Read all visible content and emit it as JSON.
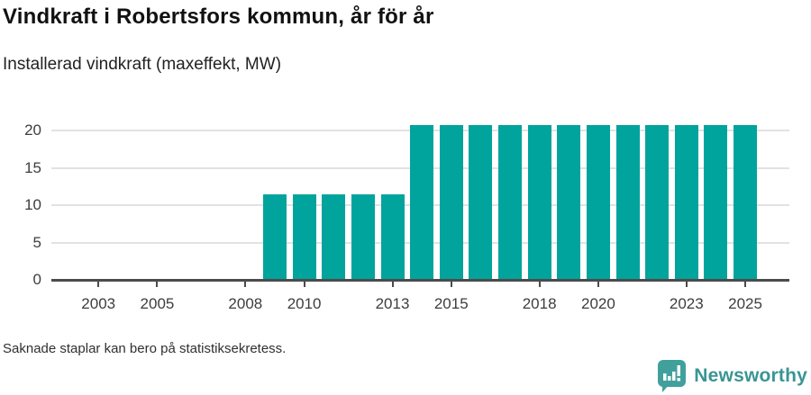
{
  "header": {
    "title": "Vindkraft i Robertsfors kommun, år för år",
    "subtitle": "Installerad vindkraft (maxeffekt, MW)"
  },
  "chart_data": {
    "type": "bar",
    "title": "Vindkraft i Robertsfors kommun, år för år",
    "subtitle": "Installerad vindkraft (maxeffekt, MW)",
    "unit": "MW",
    "categories": [
      2009,
      2010,
      2011,
      2012,
      2013,
      2014,
      2015,
      2016,
      2017,
      2018,
      2019,
      2020,
      2021,
      2022,
      2023,
      2024,
      2025
    ],
    "values": [
      11.5,
      11.5,
      11.5,
      11.5,
      11.5,
      20.7,
      20.7,
      20.7,
      20.7,
      20.7,
      20.7,
      20.7,
      20.7,
      20.7,
      20.7,
      20.7,
      20.7
    ],
    "x_ticks": [
      2003,
      2005,
      2008,
      2010,
      2013,
      2015,
      2018,
      2020,
      2023,
      2025
    ],
    "y_ticks": [
      0,
      5,
      10,
      15,
      20
    ],
    "x_domain": [
      2001.4,
      2026.5
    ],
    "ylim": [
      0,
      22.4
    ],
    "grid": true,
    "legend": false,
    "xlabel": "",
    "ylabel": "MW"
  },
  "colors": {
    "bar": "#00a49c",
    "grid": "#e2e2e2",
    "axis": "#4b4b4b",
    "tick_text": "#3d3d3d",
    "brand": "#3a9593",
    "brand_icon": "#41a09c"
  },
  "footer": {
    "note": "Saknade staplar kan bero på statistiksekretess."
  },
  "branding": {
    "name": "Newsworthy"
  }
}
